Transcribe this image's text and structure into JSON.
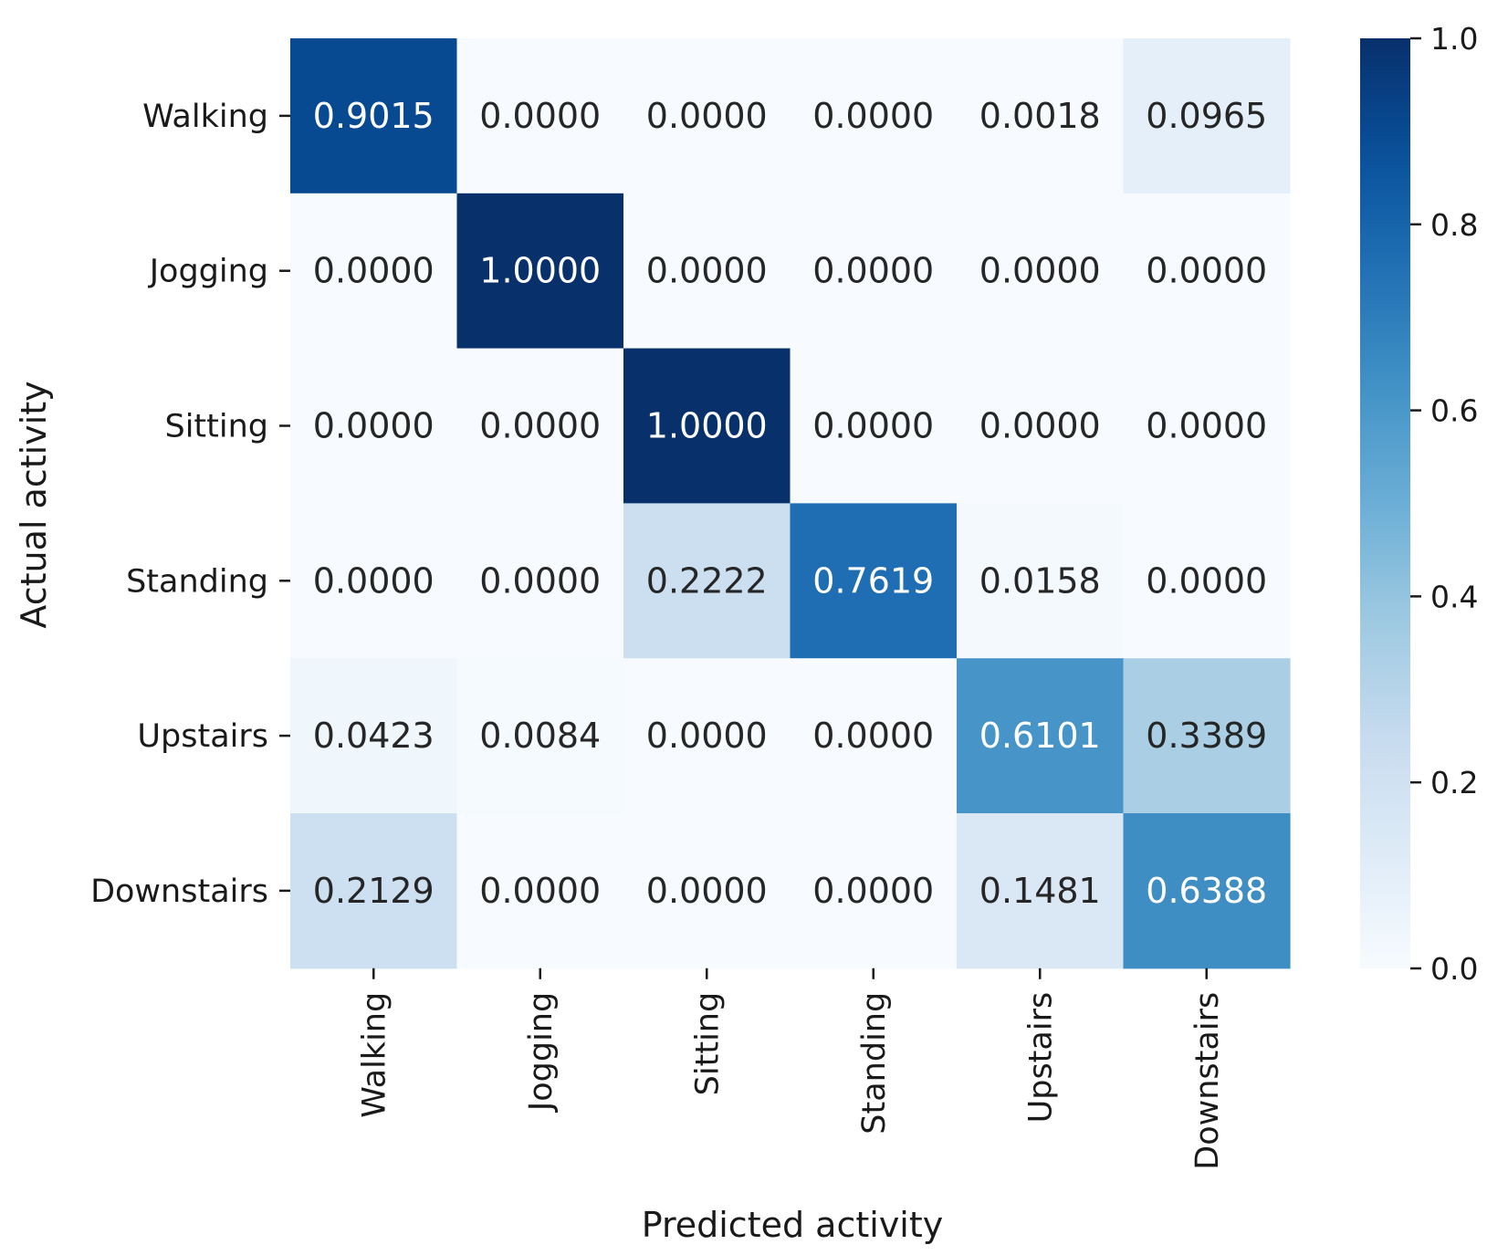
{
  "chart_data": {
    "type": "heatmap",
    "title": "",
    "xlabel": "Predicted activity",
    "ylabel": "Actual activity",
    "x_categories": [
      "Walking",
      "Jogging",
      "Sitting",
      "Standing",
      "Upstairs",
      "Downstairs"
    ],
    "y_categories": [
      "Walking",
      "Jogging",
      "Sitting",
      "Standing",
      "Upstairs",
      "Downstairs"
    ],
    "values": [
      [
        0.9015,
        0.0,
        0.0,
        0.0,
        0.0018,
        0.0965
      ],
      [
        0.0,
        1.0,
        0.0,
        0.0,
        0.0,
        0.0
      ],
      [
        0.0,
        0.0,
        1.0,
        0.0,
        0.0,
        0.0
      ],
      [
        0.0,
        0.0,
        0.2222,
        0.7619,
        0.0158,
        0.0
      ],
      [
        0.0423,
        0.0084,
        0.0,
        0.0,
        0.6101,
        0.3389
      ],
      [
        0.2129,
        0.0,
        0.0,
        0.0,
        0.1481,
        0.6388
      ]
    ],
    "value_format": "0.0000",
    "colormap": "Blues",
    "colorbar": {
      "range": [
        0.0,
        1.0
      ],
      "ticks": [
        0.0,
        0.2,
        0.4,
        0.6,
        0.8,
        1.0
      ],
      "tick_labels": [
        "0.0",
        "0.2",
        "0.4",
        "0.6",
        "0.8",
        "1.0"
      ]
    },
    "grid": false,
    "legend": "colorbar-right"
  }
}
